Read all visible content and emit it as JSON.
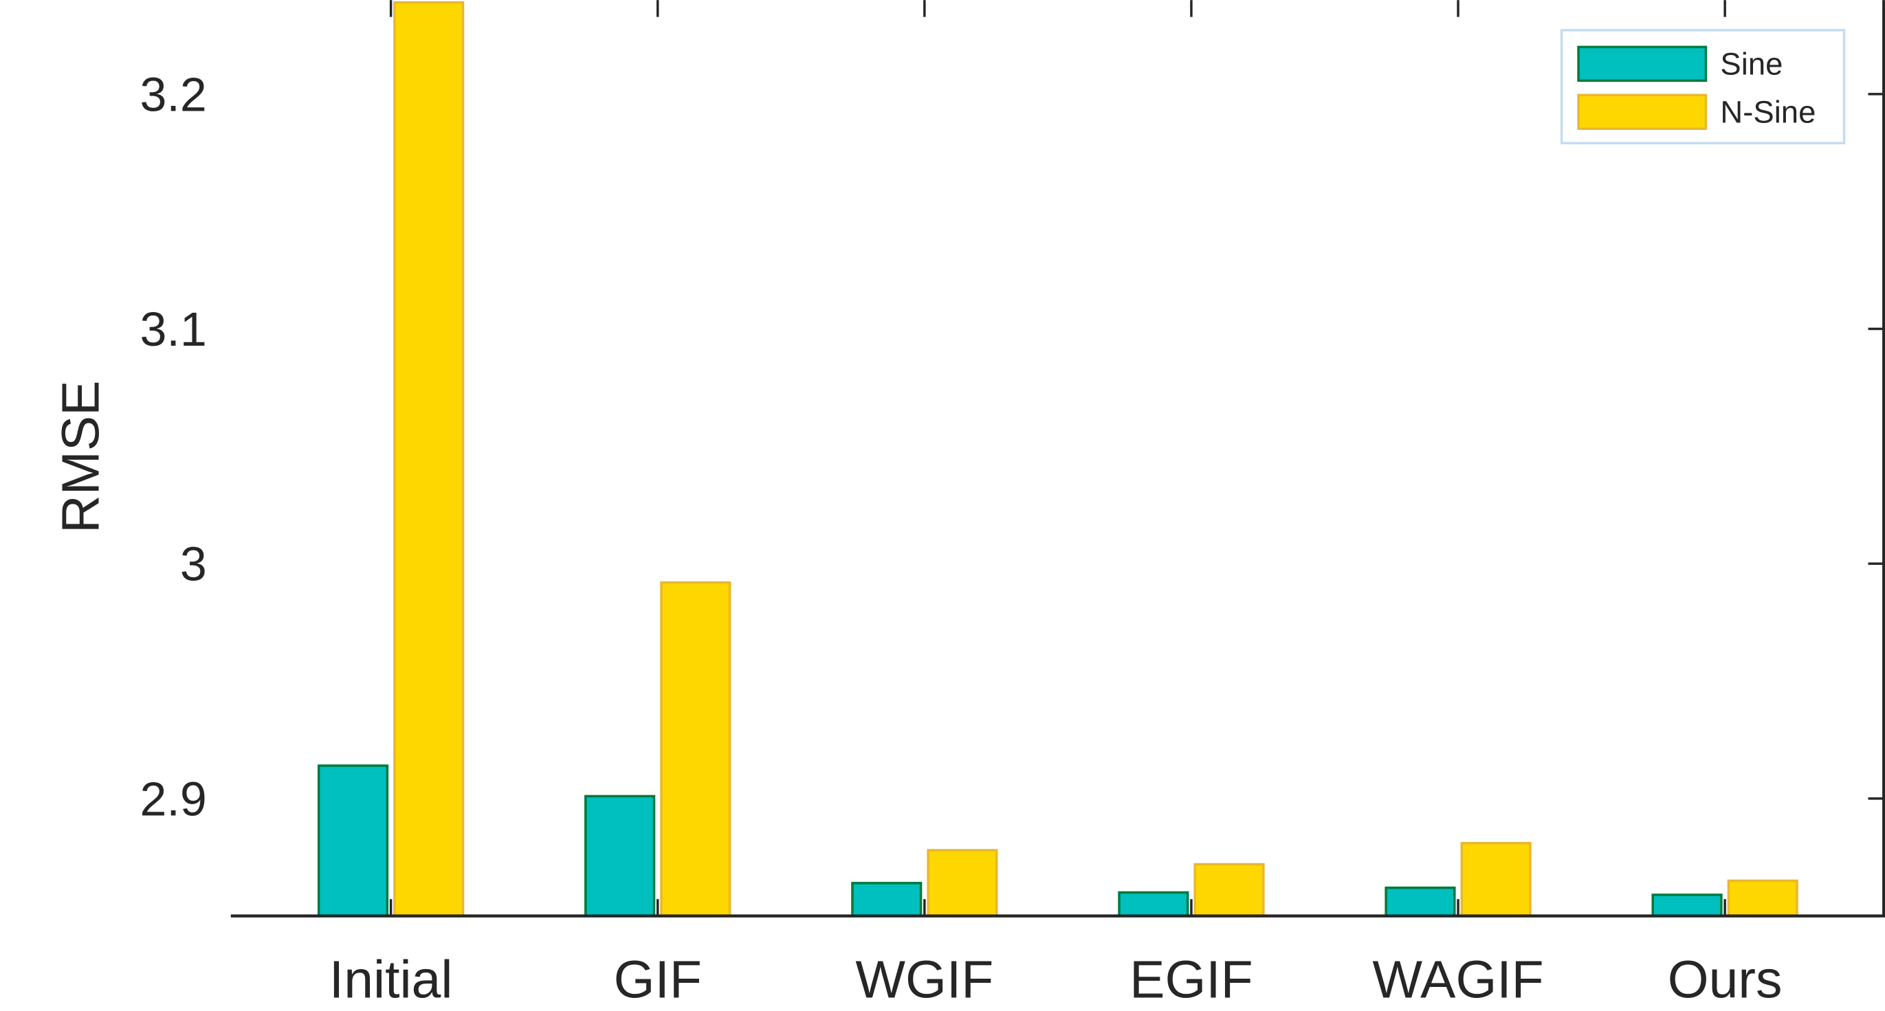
{
  "chart_data": {
    "type": "bar",
    "y_label": "RMSE",
    "categories": [
      "Initial",
      "GIF",
      "WGIF",
      "EGIF",
      "WAGIF",
      "Ours"
    ],
    "series": [
      {
        "name": "Sine",
        "color": "#00bfbf",
        "values": [
          2.914,
          2.901,
          2.864,
          2.86,
          2.862,
          2.859
        ]
      },
      {
        "name": "N-Sine",
        "color": "#ffd700",
        "values": [
          3.239,
          2.992,
          2.878,
          2.872,
          2.881,
          2.865
        ]
      }
    ],
    "ylim": [
      2.85,
      3.24
    ],
    "yticks": [
      {
        "value": 2.9,
        "label": "2.9"
      },
      3,
      {
        "value": 3.1,
        "label": "3.1"
      },
      {
        "value": 3.2,
        "label": "3.2"
      }
    ],
    "legend": "top-right"
  }
}
